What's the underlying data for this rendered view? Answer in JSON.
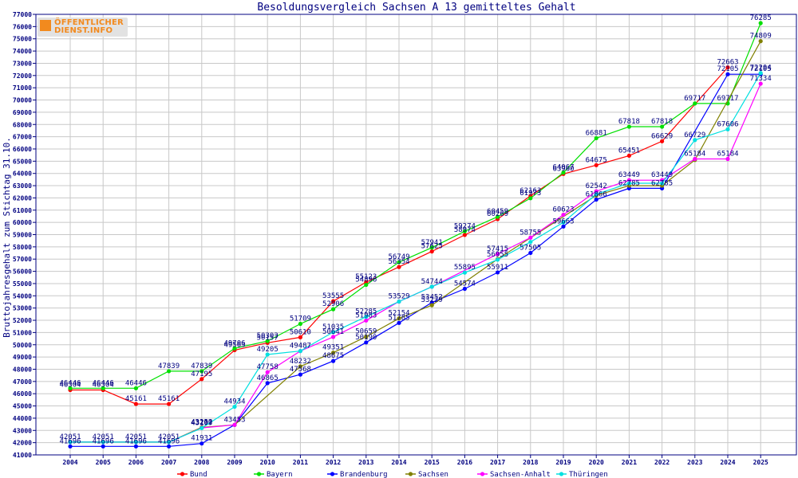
{
  "logo": {
    "line1": "ÖFFENTLICHER",
    "line2": "DIENST.INFO"
  },
  "colors": {
    "axis": "#000080",
    "grid": "#c8c8c8",
    "Bund": "#ff0000",
    "Bayern": "#00e000",
    "Brandenburg": "#0000ff",
    "Sachsen": "#808000",
    "Sachsen-Anhalt": "#ff00ff",
    "Thüringen": "#00e0e0"
  },
  "chart_data": {
    "type": "line",
    "title": "Besoldungsvergleich Sachsen A 13 gemitteltes Gehalt",
    "xlabel": "",
    "ylabel": "Bruttojahresgehalt zum Stichtag 31.10.",
    "ylim": [
      41000,
      77000
    ],
    "yticks": [
      41000,
      42000,
      43000,
      44000,
      45000,
      46000,
      47000,
      48000,
      49000,
      50000,
      51000,
      52000,
      53000,
      54000,
      55000,
      56000,
      57000,
      58000,
      59000,
      60000,
      61000,
      62000,
      63000,
      64000,
      65000,
      66000,
      67000,
      68000,
      69000,
      70000,
      71000,
      72000,
      73000,
      74000,
      75000,
      76000,
      77000
    ],
    "categories": [
      "2004",
      "2005",
      "2006",
      "2007",
      "2008",
      "2009",
      "2010",
      "2011",
      "2012",
      "2013",
      "2014",
      "2015",
      "2016",
      "2017",
      "2018",
      "2019",
      "2020",
      "2021",
      "2022",
      "2023",
      "2024",
      "2025"
    ],
    "grid": true,
    "legend_position": "bottom",
    "series": [
      {
        "name": "Bund",
        "values": [
          46304,
          46304,
          45161,
          45161,
          47195,
          49563,
          50157,
          50610,
          53555,
          55123,
          56354,
          57625,
          58974,
          60269,
          62163,
          63960,
          64675,
          65451,
          66629,
          null,
          72663,
          null
        ]
      },
      {
        "name": "Bayern",
        "values": [
          46446,
          46446,
          46446,
          47839,
          47839,
          49706,
          50303,
          51709,
          52906,
          54896,
          56749,
          57941,
          59274,
          60459,
          61973,
          64067,
          66881,
          67818,
          67818,
          69717,
          69717,
          76285
        ]
      },
      {
        "name": "Brandenburg",
        "values": [
          41696,
          41696,
          41696,
          41696,
          41931,
          43453,
          46865,
          47568,
          48675,
          50190,
          51785,
          53452,
          54574,
          55911,
          57505,
          59663,
          61866,
          62785,
          62785,
          null,
          72105,
          72105
        ]
      },
      {
        "name": "Sachsen",
        "values": [
          42051,
          42051,
          42051,
          42051,
          43250,
          43453,
          null,
          48232,
          49351,
          50659,
          52154,
          53229,
          null,
          57000,
          null,
          null,
          62200,
          63000,
          63000,
          65100,
          null,
          74809
        ]
      },
      {
        "name": "Sachsen-Anhalt",
        "values": [
          42051,
          42051,
          42051,
          42051,
          43207,
          43453,
          47758,
          49487,
          50641,
          51983,
          53529,
          54744,
          null,
          57415,
          58755,
          60623,
          62542,
          63449,
          63449,
          65184,
          65184,
          71334
        ]
      },
      {
        "name": "Thüringen",
        "values": [
          42051,
          42051,
          42051,
          42051,
          43193,
          44934,
          49205,
          49487,
          51035,
          52285,
          53529,
          54744,
          55895,
          56955,
          58400,
          60000,
          62300,
          63200,
          63200,
          66729,
          67606,
          72204
        ]
      }
    ],
    "data_labels": [
      {
        "year": "2004",
        "value": "46446"
      },
      {
        "year": "2004",
        "value": "46304"
      },
      {
        "year": "2004",
        "value": "42051"
      },
      {
        "year": "2004",
        "value": "41696"
      },
      {
        "year": "2005",
        "value": "46446"
      },
      {
        "year": "2005",
        "value": "46304"
      },
      {
        "year": "2005",
        "value": "42051"
      },
      {
        "year": "2005",
        "value": "41696"
      },
      {
        "year": "2006",
        "value": "46446"
      },
      {
        "year": "2006",
        "value": "45161"
      },
      {
        "year": "2006",
        "value": "42051"
      },
      {
        "year": "2006",
        "value": "41696"
      },
      {
        "year": "2007",
        "value": "47839"
      },
      {
        "year": "2007",
        "value": "45161"
      },
      {
        "year": "2007",
        "value": "42051"
      },
      {
        "year": "2007",
        "value": "41696"
      },
      {
        "year": "2008",
        "value": "47839"
      },
      {
        "year": "2008",
        "value": "47195"
      },
      {
        "year": "2008",
        "value": "43250"
      },
      {
        "year": "2008",
        "value": "43207"
      },
      {
        "year": "2008",
        "value": "43193"
      },
      {
        "year": "2008",
        "value": "41931"
      },
      {
        "year": "2009",
        "value": "49706"
      },
      {
        "year": "2009",
        "value": "49563"
      },
      {
        "year": "2009",
        "value": "44934"
      },
      {
        "year": "2009",
        "value": "43453"
      },
      {
        "year": "2010",
        "value": "50303"
      },
      {
        "year": "2010",
        "value": "50157"
      },
      {
        "year": "2010",
        "value": "49205"
      },
      {
        "year": "2010",
        "value": "47758"
      },
      {
        "year": "2010",
        "value": "46865"
      },
      {
        "year": "2011",
        "value": "51709"
      },
      {
        "year": "2011",
        "value": "50610"
      },
      {
        "year": "2011",
        "value": "49487"
      },
      {
        "year": "2011",
        "value": "48232"
      },
      {
        "year": "2011",
        "value": "47568"
      },
      {
        "year": "2012",
        "value": "53555"
      },
      {
        "year": "2012",
        "value": "52906"
      },
      {
        "year": "2012",
        "value": "51035"
      },
      {
        "year": "2012",
        "value": "50641"
      },
      {
        "year": "2012",
        "value": "49351"
      },
      {
        "year": "2012",
        "value": "48675"
      },
      {
        "year": "2013",
        "value": "55123"
      },
      {
        "year": "2013",
        "value": "54896"
      },
      {
        "year": "2013",
        "value": "52285"
      },
      {
        "year": "2013",
        "value": "51983"
      },
      {
        "year": "2013",
        "value": "50659"
      },
      {
        "year": "2013",
        "value": "50190"
      },
      {
        "year": "2014",
        "value": "56749"
      },
      {
        "year": "2014",
        "value": "56354"
      },
      {
        "year": "2014",
        "value": "53529"
      },
      {
        "year": "2014",
        "value": "52154"
      },
      {
        "year": "2014",
        "value": "51785"
      },
      {
        "year": "2015",
        "value": "57941"
      },
      {
        "year": "2015",
        "value": "57625"
      },
      {
        "year": "2015",
        "value": "54744"
      },
      {
        "year": "2015",
        "value": "53452"
      },
      {
        "year": "2015",
        "value": "53229"
      },
      {
        "year": "2016",
        "value": "59274"
      },
      {
        "year": "2016",
        "value": "58974"
      },
      {
        "year": "2016",
        "value": "55895"
      },
      {
        "year": "2016",
        "value": "54574"
      },
      {
        "year": "2017",
        "value": "60459"
      },
      {
        "year": "2017",
        "value": "60269"
      },
      {
        "year": "2017",
        "value": "57415"
      },
      {
        "year": "2017",
        "value": "56955"
      },
      {
        "year": "2017",
        "value": "55911"
      },
      {
        "year": "2018",
        "value": "62163"
      },
      {
        "year": "2018",
        "value": "61973"
      },
      {
        "year": "2018",
        "value": "58755"
      },
      {
        "year": "2018",
        "value": "57505"
      },
      {
        "year": "2019",
        "value": "64067"
      },
      {
        "year": "2019",
        "value": "63960"
      },
      {
        "year": "2019",
        "value": "60623"
      },
      {
        "year": "2019",
        "value": "59663"
      },
      {
        "year": "2020",
        "value": "66881"
      },
      {
        "year": "2020",
        "value": "64675"
      },
      {
        "year": "2020",
        "value": "62542"
      },
      {
        "year": "2020",
        "value": "61866"
      },
      {
        "year": "2021",
        "value": "67818"
      },
      {
        "year": "2021",
        "value": "65451"
      },
      {
        "year": "2021",
        "value": "63449"
      },
      {
        "year": "2021",
        "value": "62785"
      },
      {
        "year": "2022",
        "value": "67818"
      },
      {
        "year": "2022",
        "value": "66629"
      },
      {
        "year": "2022",
        "value": "63449"
      },
      {
        "year": "2022",
        "value": "62785"
      },
      {
        "year": "2023",
        "value": "69717"
      },
      {
        "year": "2023",
        "value": "66729"
      },
      {
        "year": "2023",
        "value": "65184"
      },
      {
        "year": "2024",
        "value": "72663"
      },
      {
        "year": "2024",
        "value": "72105"
      },
      {
        "year": "2024",
        "value": "69717"
      },
      {
        "year": "2024",
        "value": "67606"
      },
      {
        "year": "2024",
        "value": "65184"
      },
      {
        "year": "2025",
        "value": "76285"
      },
      {
        "year": "2025",
        "value": "74809"
      },
      {
        "year": "2025",
        "value": "72204"
      },
      {
        "year": "2025",
        "value": "72105"
      },
      {
        "year": "2025",
        "value": "71334"
      }
    ]
  }
}
